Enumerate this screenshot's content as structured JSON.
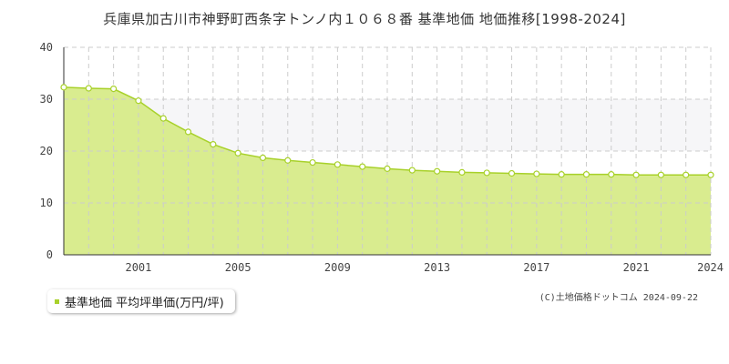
{
  "title": "兵庫県加古川市神野町西条字トンノ内１０６８番 基準地価 地価推移[1998-2024]",
  "legend": {
    "label": "基準地価 平均坪単価(万円/坪)"
  },
  "copyright": "(C)土地価格ドットコム 2024-09-22",
  "colors": {
    "fill": "#d9ec8f",
    "line": "#a8d12a",
    "band": "#f6f6f8",
    "grid": "#cccccc"
  },
  "chart_data": {
    "type": "area",
    "title": "兵庫県加古川市神野町西条字トンノ内１０６８番 基準地価 地価推移[1998-2024]",
    "xlabel": "",
    "ylabel": "",
    "ylim": [
      0,
      40
    ],
    "yticks": [
      "0",
      "10",
      "20",
      "30",
      "40"
    ],
    "xlim": [
      1998,
      2024
    ],
    "xticks": [
      "2001",
      "2005",
      "2009",
      "2013",
      "2017",
      "2021",
      "2024"
    ],
    "grid": true,
    "legend_position": "bottom-left",
    "series": [
      {
        "name": "基準地価 平均坪単価(万円/坪)",
        "x": [
          1998,
          1999,
          2000,
          2001,
          2002,
          2003,
          2004,
          2005,
          2006,
          2007,
          2008,
          2009,
          2010,
          2011,
          2012,
          2013,
          2014,
          2015,
          2016,
          2017,
          2018,
          2019,
          2020,
          2021,
          2022,
          2023,
          2024
        ],
        "values": [
          32.3,
          32.1,
          32.0,
          29.7,
          26.3,
          23.7,
          21.3,
          19.6,
          18.7,
          18.2,
          17.8,
          17.4,
          17.0,
          16.6,
          16.3,
          16.1,
          15.9,
          15.8,
          15.7,
          15.6,
          15.5,
          15.5,
          15.5,
          15.4,
          15.4,
          15.4,
          15.4
        ]
      }
    ]
  }
}
